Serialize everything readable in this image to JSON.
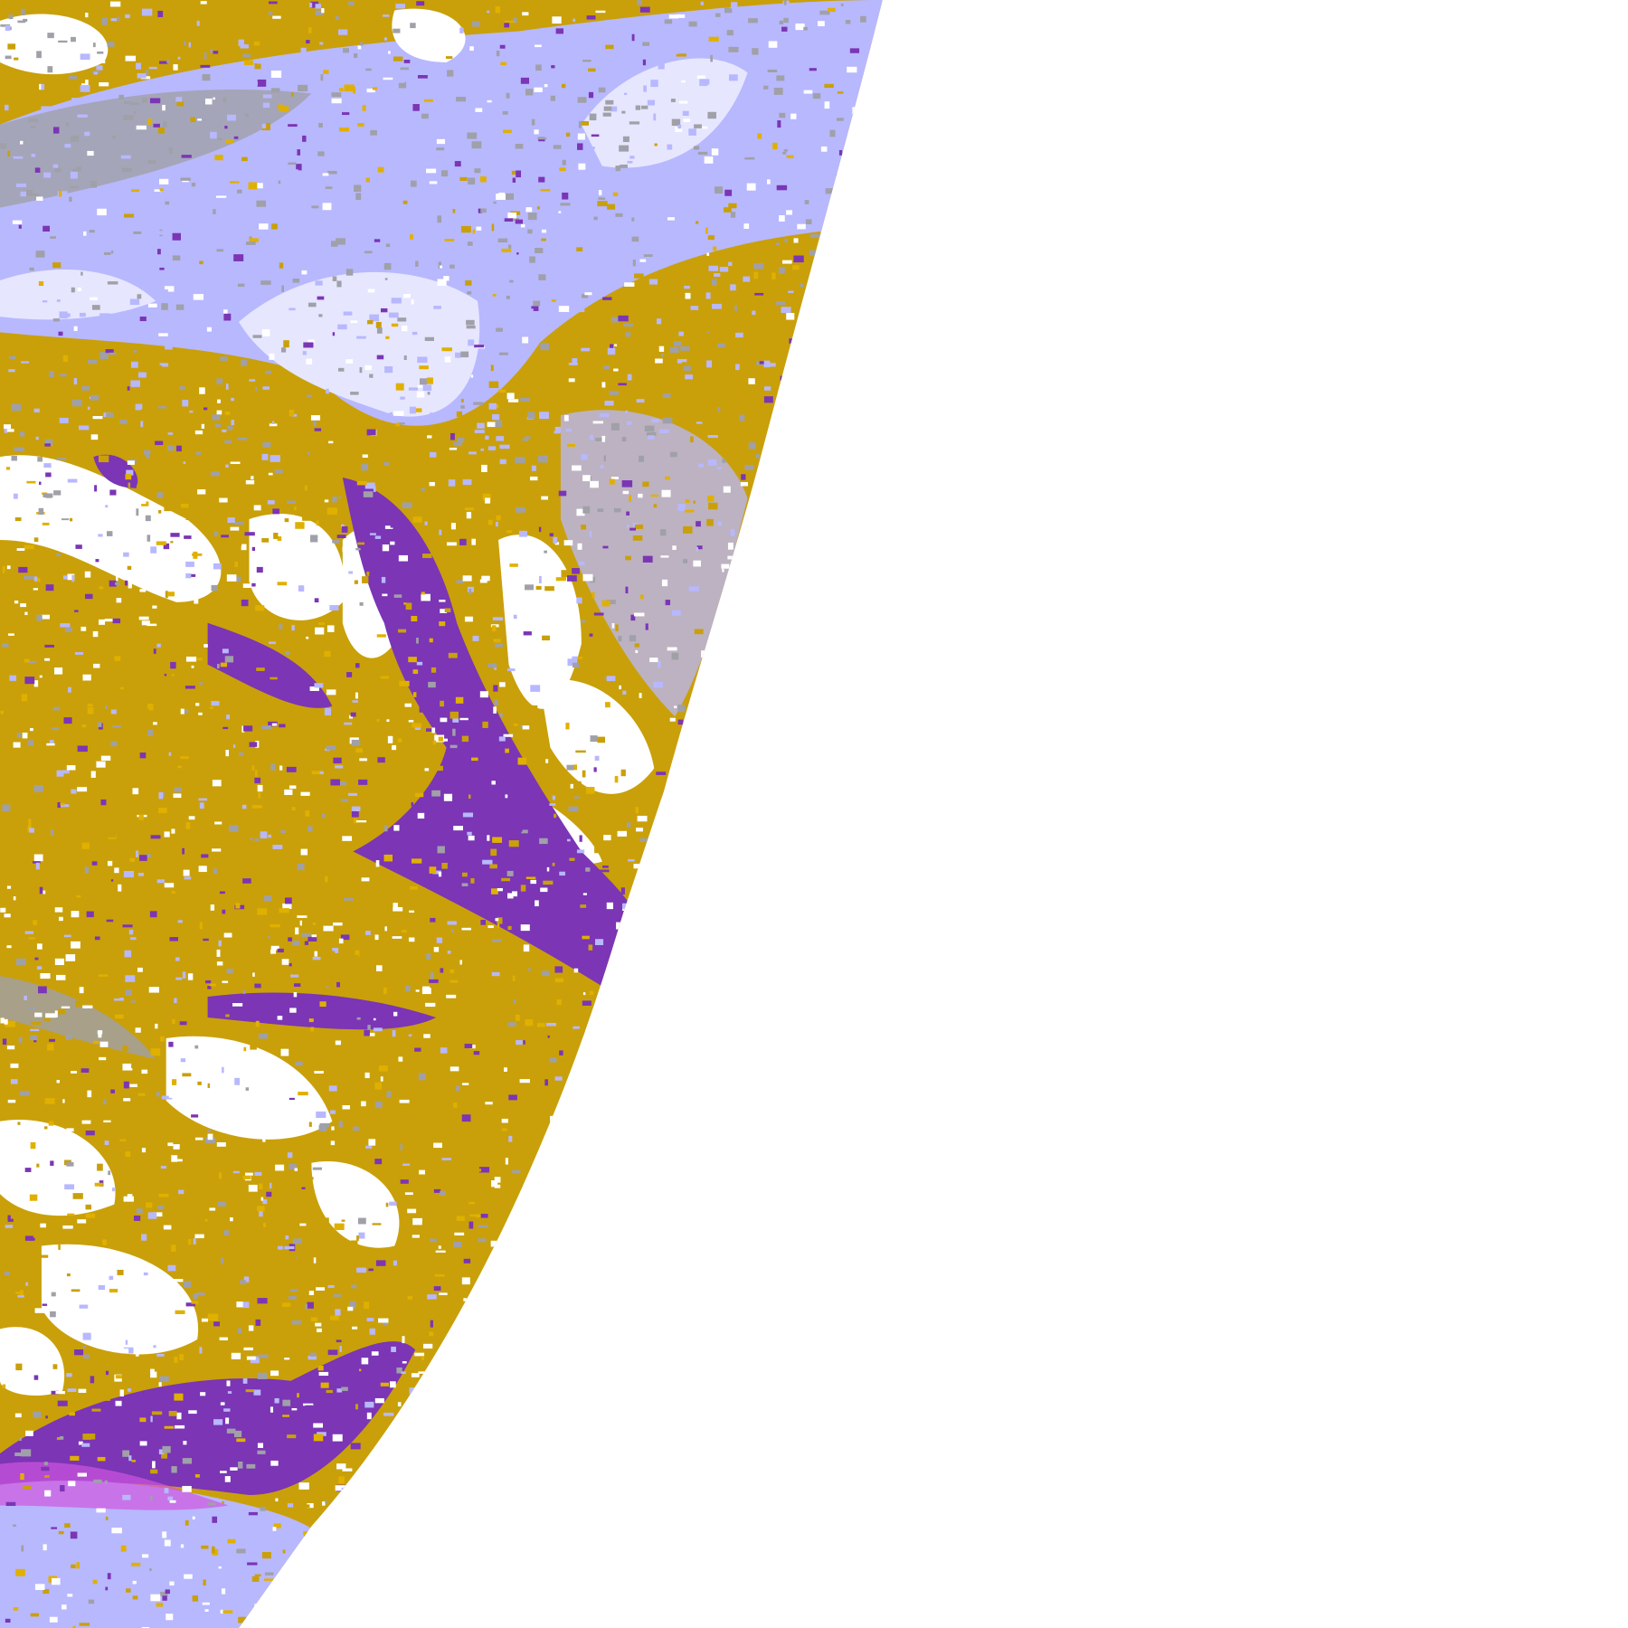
{
  "colors": {
    "background": "#ffffff",
    "gold": "#c9a00a",
    "gold_bright": "#e0b000",
    "purple": "#7b35b5",
    "magenta": "#d055e0",
    "lavender": "#b8b8ff",
    "pale_lavender": "#e6e6ff",
    "blue_violet": "#9a9aee",
    "gray": "#a0a0a8",
    "clear": "#ffffff"
  }
}
